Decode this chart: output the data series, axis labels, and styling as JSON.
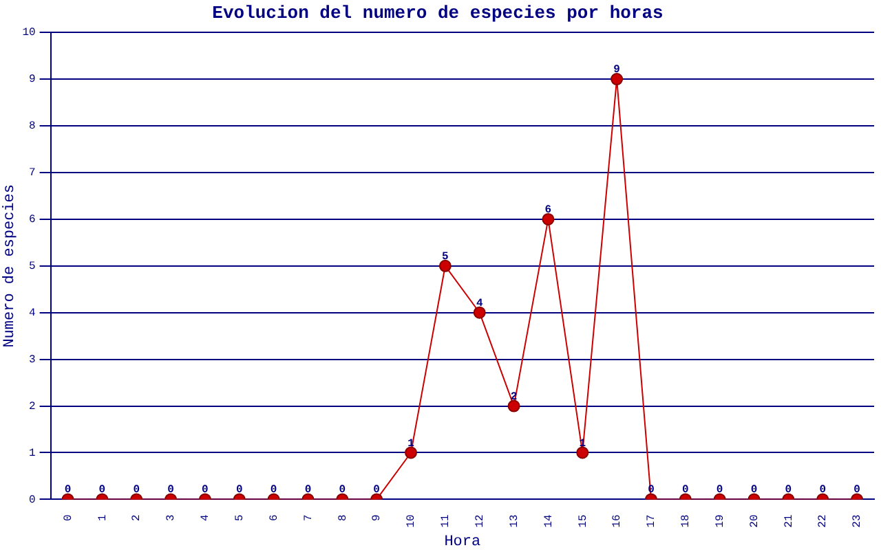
{
  "chart_data": {
    "type": "line",
    "title": "Evolucion del numero de especies por horas",
    "xlabel": "Hora",
    "ylabel": "Numero de especies",
    "categories": [
      "0",
      "1",
      "2",
      "3",
      "4",
      "5",
      "6",
      "7",
      "8",
      "9",
      "10",
      "11",
      "12",
      "13",
      "14",
      "15",
      "16",
      "17",
      "18",
      "19",
      "20",
      "21",
      "22",
      "23"
    ],
    "series": [
      {
        "color": "#cc0000",
        "values": [
          0,
          0,
          0,
          0,
          0,
          0,
          0,
          0,
          0,
          0,
          1,
          5,
          4,
          2,
          6,
          1,
          9,
          0,
          0,
          0,
          0,
          0,
          0,
          0
        ]
      }
    ],
    "ylim": [
      0,
      10
    ],
    "yticks": [
      0,
      1,
      2,
      3,
      4,
      5,
      6,
      7,
      8,
      9,
      10
    ],
    "grid": "y",
    "marker": "circle",
    "line_style": "solid",
    "data_labels": true,
    "legend": false
  }
}
